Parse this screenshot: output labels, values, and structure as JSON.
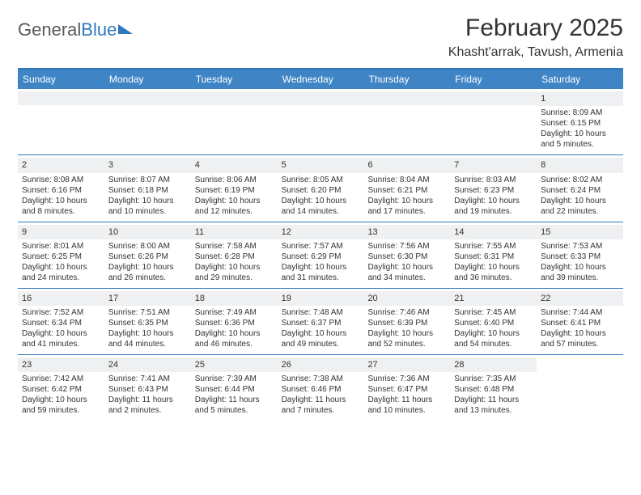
{
  "logo": {
    "text1": "General",
    "text2": "Blue"
  },
  "title": "February 2025",
  "location": "Khasht'arrak, Tavush, Armenia",
  "colors": {
    "header_bg": "#3f85c6",
    "border": "#2f78bf",
    "daynum_bg": "#eef0f1",
    "text": "#333333",
    "page_bg": "#ffffff"
  },
  "weekdays": [
    "Sunday",
    "Monday",
    "Tuesday",
    "Wednesday",
    "Thursday",
    "Friday",
    "Saturday"
  ],
  "weeks": [
    [
      {
        "empty": true
      },
      {
        "empty": true
      },
      {
        "empty": true
      },
      {
        "empty": true
      },
      {
        "empty": true
      },
      {
        "empty": true
      },
      {
        "n": "1",
        "sunrise": "Sunrise: 8:09 AM",
        "sunset": "Sunset: 6:15 PM",
        "daylight": "Daylight: 10 hours and 5 minutes."
      }
    ],
    [
      {
        "n": "2",
        "sunrise": "Sunrise: 8:08 AM",
        "sunset": "Sunset: 6:16 PM",
        "daylight": "Daylight: 10 hours and 8 minutes."
      },
      {
        "n": "3",
        "sunrise": "Sunrise: 8:07 AM",
        "sunset": "Sunset: 6:18 PM",
        "daylight": "Daylight: 10 hours and 10 minutes."
      },
      {
        "n": "4",
        "sunrise": "Sunrise: 8:06 AM",
        "sunset": "Sunset: 6:19 PM",
        "daylight": "Daylight: 10 hours and 12 minutes."
      },
      {
        "n": "5",
        "sunrise": "Sunrise: 8:05 AM",
        "sunset": "Sunset: 6:20 PM",
        "daylight": "Daylight: 10 hours and 14 minutes."
      },
      {
        "n": "6",
        "sunrise": "Sunrise: 8:04 AM",
        "sunset": "Sunset: 6:21 PM",
        "daylight": "Daylight: 10 hours and 17 minutes."
      },
      {
        "n": "7",
        "sunrise": "Sunrise: 8:03 AM",
        "sunset": "Sunset: 6:23 PM",
        "daylight": "Daylight: 10 hours and 19 minutes."
      },
      {
        "n": "8",
        "sunrise": "Sunrise: 8:02 AM",
        "sunset": "Sunset: 6:24 PM",
        "daylight": "Daylight: 10 hours and 22 minutes."
      }
    ],
    [
      {
        "n": "9",
        "sunrise": "Sunrise: 8:01 AM",
        "sunset": "Sunset: 6:25 PM",
        "daylight": "Daylight: 10 hours and 24 minutes."
      },
      {
        "n": "10",
        "sunrise": "Sunrise: 8:00 AM",
        "sunset": "Sunset: 6:26 PM",
        "daylight": "Daylight: 10 hours and 26 minutes."
      },
      {
        "n": "11",
        "sunrise": "Sunrise: 7:58 AM",
        "sunset": "Sunset: 6:28 PM",
        "daylight": "Daylight: 10 hours and 29 minutes."
      },
      {
        "n": "12",
        "sunrise": "Sunrise: 7:57 AM",
        "sunset": "Sunset: 6:29 PM",
        "daylight": "Daylight: 10 hours and 31 minutes."
      },
      {
        "n": "13",
        "sunrise": "Sunrise: 7:56 AM",
        "sunset": "Sunset: 6:30 PM",
        "daylight": "Daylight: 10 hours and 34 minutes."
      },
      {
        "n": "14",
        "sunrise": "Sunrise: 7:55 AM",
        "sunset": "Sunset: 6:31 PM",
        "daylight": "Daylight: 10 hours and 36 minutes."
      },
      {
        "n": "15",
        "sunrise": "Sunrise: 7:53 AM",
        "sunset": "Sunset: 6:33 PM",
        "daylight": "Daylight: 10 hours and 39 minutes."
      }
    ],
    [
      {
        "n": "16",
        "sunrise": "Sunrise: 7:52 AM",
        "sunset": "Sunset: 6:34 PM",
        "daylight": "Daylight: 10 hours and 41 minutes."
      },
      {
        "n": "17",
        "sunrise": "Sunrise: 7:51 AM",
        "sunset": "Sunset: 6:35 PM",
        "daylight": "Daylight: 10 hours and 44 minutes."
      },
      {
        "n": "18",
        "sunrise": "Sunrise: 7:49 AM",
        "sunset": "Sunset: 6:36 PM",
        "daylight": "Daylight: 10 hours and 46 minutes."
      },
      {
        "n": "19",
        "sunrise": "Sunrise: 7:48 AM",
        "sunset": "Sunset: 6:37 PM",
        "daylight": "Daylight: 10 hours and 49 minutes."
      },
      {
        "n": "20",
        "sunrise": "Sunrise: 7:46 AM",
        "sunset": "Sunset: 6:39 PM",
        "daylight": "Daylight: 10 hours and 52 minutes."
      },
      {
        "n": "21",
        "sunrise": "Sunrise: 7:45 AM",
        "sunset": "Sunset: 6:40 PM",
        "daylight": "Daylight: 10 hours and 54 minutes."
      },
      {
        "n": "22",
        "sunrise": "Sunrise: 7:44 AM",
        "sunset": "Sunset: 6:41 PM",
        "daylight": "Daylight: 10 hours and 57 minutes."
      }
    ],
    [
      {
        "n": "23",
        "sunrise": "Sunrise: 7:42 AM",
        "sunset": "Sunset: 6:42 PM",
        "daylight": "Daylight: 10 hours and 59 minutes."
      },
      {
        "n": "24",
        "sunrise": "Sunrise: 7:41 AM",
        "sunset": "Sunset: 6:43 PM",
        "daylight": "Daylight: 11 hours and 2 minutes."
      },
      {
        "n": "25",
        "sunrise": "Sunrise: 7:39 AM",
        "sunset": "Sunset: 6:44 PM",
        "daylight": "Daylight: 11 hours and 5 minutes."
      },
      {
        "n": "26",
        "sunrise": "Sunrise: 7:38 AM",
        "sunset": "Sunset: 6:46 PM",
        "daylight": "Daylight: 11 hours and 7 minutes."
      },
      {
        "n": "27",
        "sunrise": "Sunrise: 7:36 AM",
        "sunset": "Sunset: 6:47 PM",
        "daylight": "Daylight: 11 hours and 10 minutes."
      },
      {
        "n": "28",
        "sunrise": "Sunrise: 7:35 AM",
        "sunset": "Sunset: 6:48 PM",
        "daylight": "Daylight: 11 hours and 13 minutes."
      },
      {
        "empty": true,
        "noBar": true
      }
    ]
  ]
}
